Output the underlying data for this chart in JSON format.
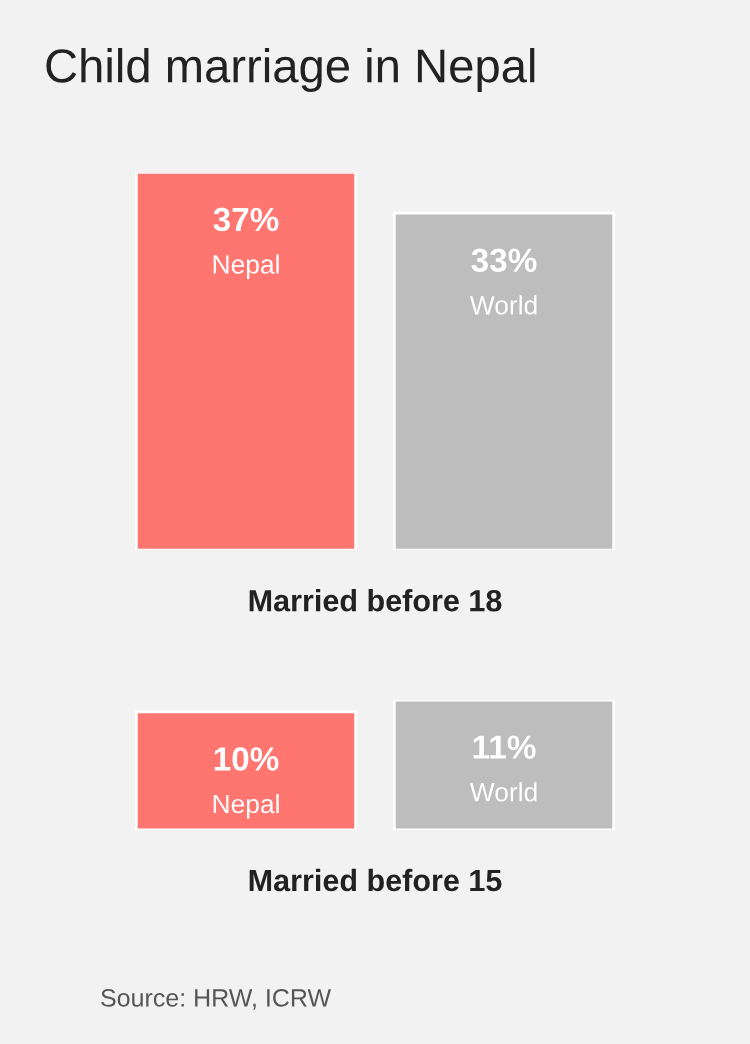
{
  "chart_data": [
    {
      "type": "bar",
      "title": "Child marriage in Nepal",
      "categories": [
        "Nepal",
        "World"
      ],
      "values": [
        37,
        33
      ],
      "value_labels": [
        "37%",
        "33%"
      ],
      "colors": [
        "#ff7570",
        "#bdbdbd"
      ],
      "xlabel": "Married before 18",
      "legend": false
    },
    {
      "type": "bar",
      "categories": [
        "Nepal",
        "World"
      ],
      "values": [
        10,
        11
      ],
      "value_labels": [
        "10%",
        "11%"
      ],
      "colors": [
        "#ff7570",
        "#bdbdbd"
      ],
      "xlabel": "Married before 15",
      "legend": false,
      "annotations": [
        "Source: HRW, ICRW"
      ]
    }
  ]
}
